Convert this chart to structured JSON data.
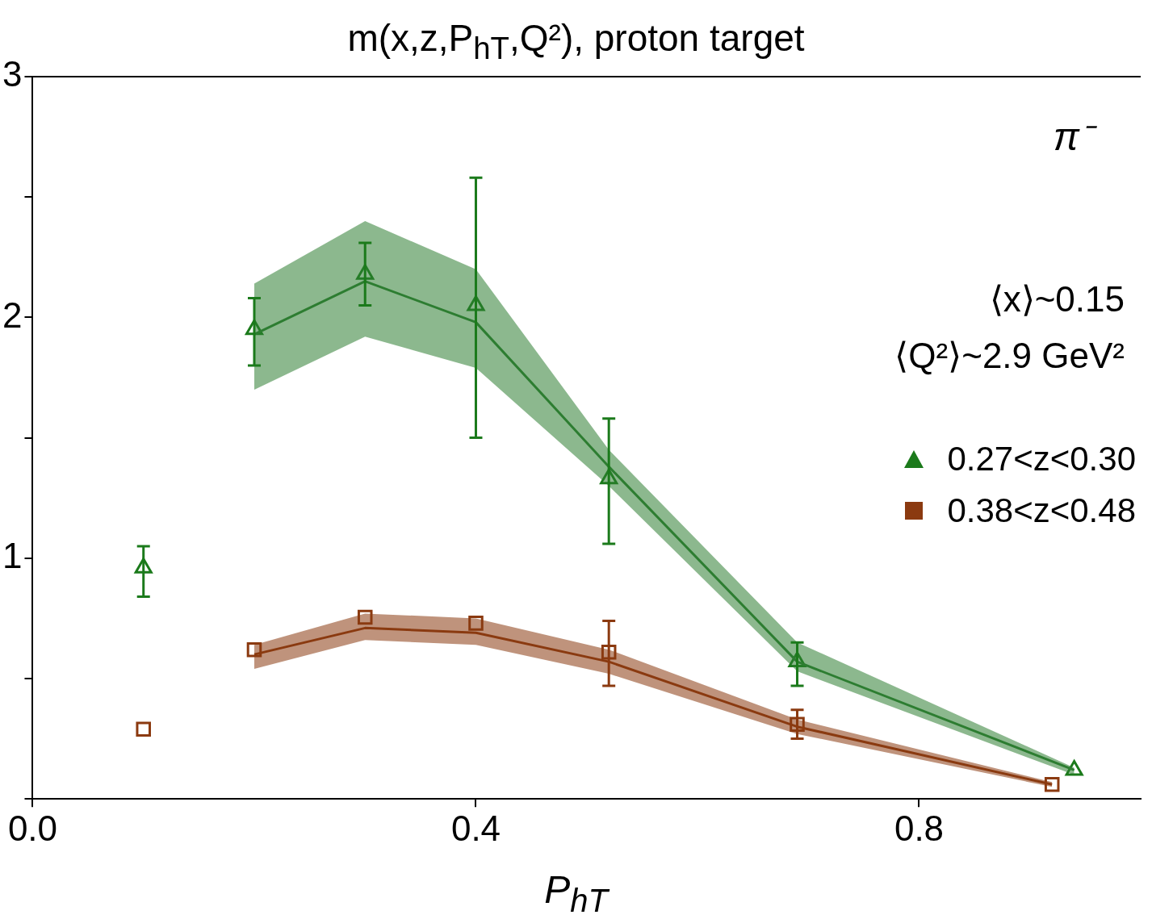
{
  "chart_data": {
    "type": "scatter",
    "title": "m(x,z,P$_{hT}$,Q²), proton target",
    "xlabel": "P$_{hT}$",
    "annotations": [
      "π⁻",
      "⟨x⟩~0.15",
      "⟨Q²⟩~2.9 GeV²"
    ],
    "xlim": [
      0,
      1
    ],
    "xticks": [
      {
        "value": 0,
        "label": "0.0"
      },
      0.4,
      0.8
    ],
    "ylim": [
      0,
      3
    ],
    "yticks": [
      {
        "value": 0,
        "label": null
      },
      {
        "value": 0.5,
        "label": null
      },
      1,
      {
        "value": 1.5,
        "label": null
      },
      2,
      {
        "value": 2.5,
        "label": null
      },
      3
    ],
    "grid": false,
    "legend": "right",
    "series": [
      {
        "type": "line",
        "color": "#2e7d32",
        "x": [
          0.2,
          0.3,
          0.4,
          0.52,
          0.69,
          0.94
        ],
        "values": [
          1.93,
          2.15,
          1.98,
          1.38,
          0.57,
          0.12
        ],
        "lower": [
          1.7,
          1.92,
          1.79,
          1.3,
          0.53,
          0.1
        ],
        "upper": [
          2.14,
          2.4,
          2.2,
          1.45,
          0.65,
          0.13
        ]
      },
      {
        "type": "line",
        "color": "#8b3a10",
        "x": [
          0.2,
          0.3,
          0.4,
          0.52,
          0.69,
          0.92
        ],
        "values": [
          0.6,
          0.71,
          0.69,
          0.57,
          0.3,
          0.06
        ],
        "lower": [
          0.54,
          0.66,
          0.64,
          0.52,
          0.27,
          0.05
        ],
        "upper": [
          0.64,
          0.77,
          0.75,
          0.62,
          0.33,
          0.07
        ]
      },
      {
        "name": "0.27<z<0.30",
        "color": "#1b7a1b",
        "marker": "triangle",
        "x": [
          0.1,
          0.2,
          0.3,
          0.4,
          0.52,
          0.69,
          0.94
        ],
        "values": [
          0.96,
          1.95,
          2.18,
          2.05,
          1.33,
          0.57,
          0.12
        ],
        "errors": [
          [
            0.84,
            1.05
          ],
          [
            1.8,
            2.08
          ],
          [
            2.05,
            2.31
          ],
          [
            1.5,
            2.58
          ],
          [
            1.06,
            1.58
          ],
          [
            0.47,
            0.65
          ],
          null
        ]
      },
      {
        "name": "0.38<z<0.48",
        "color": "#8b3a10",
        "marker": "square",
        "x": [
          0.1,
          0.2,
          0.3,
          0.4,
          0.52,
          0.69,
          0.92
        ],
        "values": [
          0.29,
          0.62,
          0.755,
          0.73,
          0.61,
          0.31,
          0.06
        ],
        "errors": [
          null,
          null,
          null,
          null,
          [
            0.47,
            0.74
          ],
          [
            0.25,
            0.37
          ],
          null
        ]
      }
    ]
  }
}
